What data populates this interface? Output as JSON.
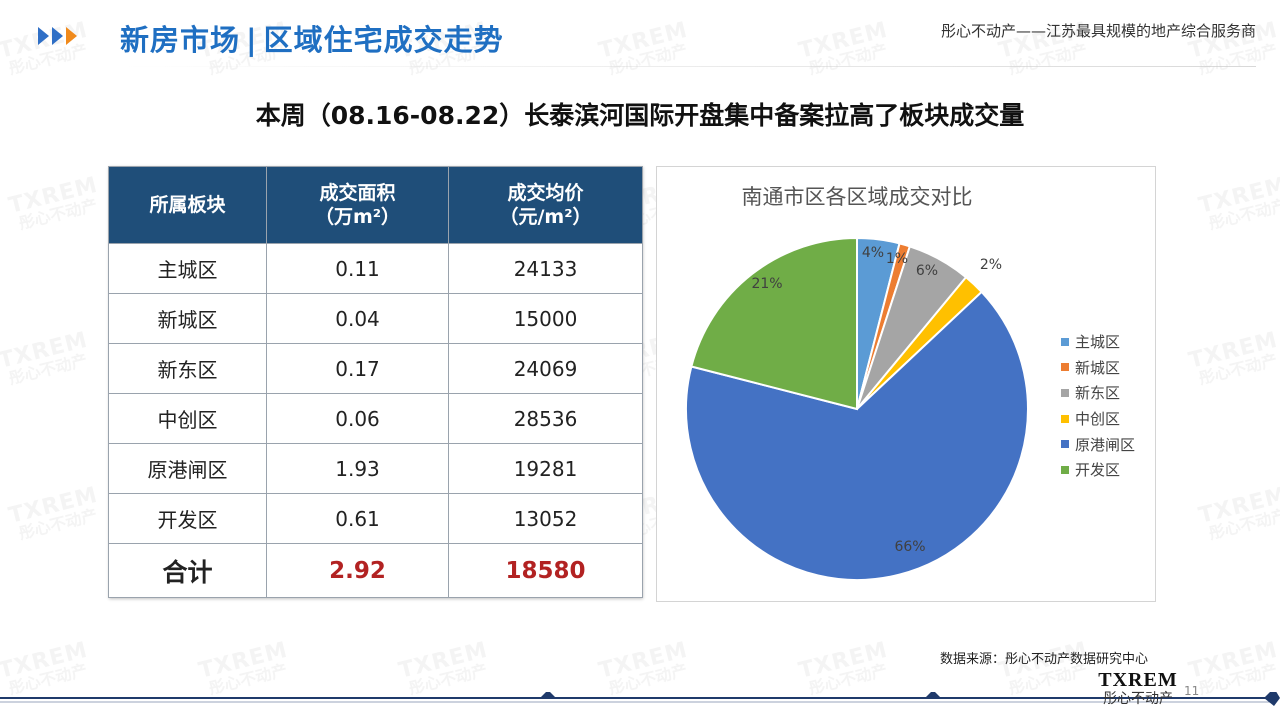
{
  "header": {
    "title_left": "新房市场",
    "separator": "|",
    "title_right": "区域住宅成交走势",
    "company_tagline": "彤心不动产——江苏最具规模的地产综合服务商"
  },
  "subtitle": "本周（08.16-08.22）长泰滨河国际开盘集中备案拉高了板块成交量",
  "table": {
    "headers": [
      {
        "line1": "所属板块",
        "line2": ""
      },
      {
        "line1": "成交面积",
        "line2": "（万m²）"
      },
      {
        "line1": "成交均价",
        "line2": "（元/m²）"
      }
    ],
    "rows": [
      {
        "district": "主城区",
        "area": "0.11",
        "price": "24133"
      },
      {
        "district": "新城区",
        "area": "0.04",
        "price": "15000"
      },
      {
        "district": "新东区",
        "area": "0.17",
        "price": "24069"
      },
      {
        "district": "中创区",
        "area": "0.06",
        "price": "28536"
      },
      {
        "district": "原港闸区",
        "area": "1.93",
        "price": "19281"
      },
      {
        "district": "开发区",
        "area": "0.61",
        "price": "13052"
      }
    ],
    "total": {
      "label": "合计",
      "area": "2.92",
      "price": "18580"
    }
  },
  "chart_data": {
    "type": "pie",
    "title": "南通市区各区域成交对比",
    "categories": [
      "主城区",
      "新城区",
      "新东区",
      "中创区",
      "原港闸区",
      "开发区"
    ],
    "values": [
      4,
      1,
      6,
      2,
      66,
      21
    ],
    "labels": [
      "4%",
      "1%",
      "6%",
      "2%",
      "66%",
      "21%"
    ],
    "colors": [
      "#5b9bd5",
      "#ed7d31",
      "#a5a5a5",
      "#ffc000",
      "#4472c4",
      "#70ad47"
    ],
    "legend_position": "right"
  },
  "footer": {
    "source": "数据来源：彤心不动产数据研究中心",
    "logo_mark": "TXREM",
    "logo_cn": "彤心不动产",
    "page_number": "11"
  },
  "watermark": {
    "mark": "TXREM",
    "cn": "彤心不动产"
  }
}
